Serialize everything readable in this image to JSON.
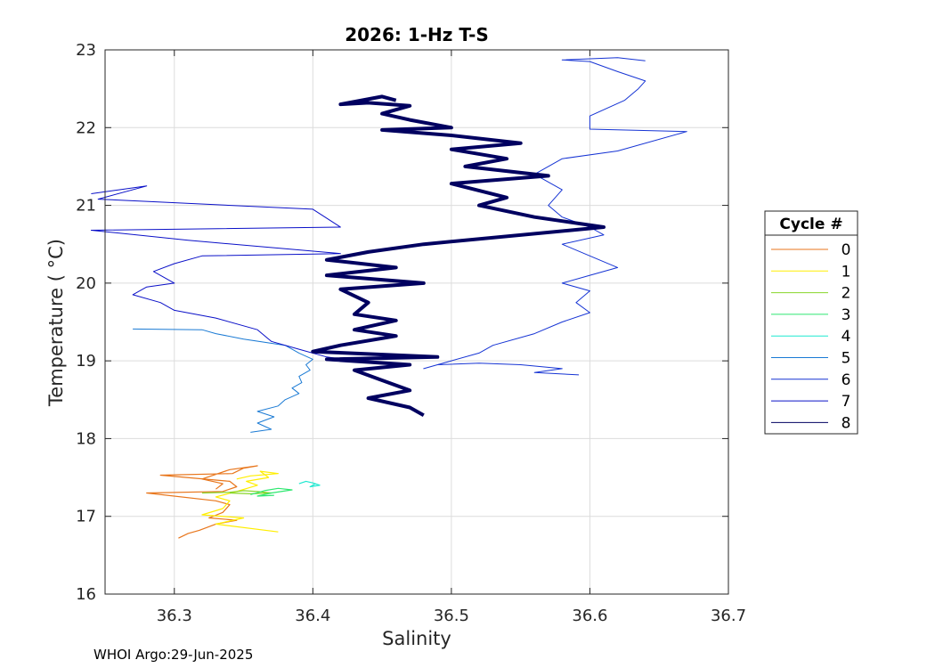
{
  "chart_data": {
    "type": "line",
    "title": "2026: 1-Hz T-S",
    "xlabel": "Salinity",
    "ylabel": "Temperature ( °C)",
    "xlim": [
      36.25,
      36.7
    ],
    "ylim": [
      16,
      23
    ],
    "xticks": [
      "36.3",
      "36.4",
      "36.5",
      "36.6",
      "36.7"
    ],
    "yticks": [
      "16",
      "17",
      "18",
      "19",
      "20",
      "21",
      "22",
      "23"
    ],
    "grid": true,
    "legend": {
      "title": "Cycle #",
      "placement": "outside-right"
    },
    "series": [
      {
        "name": "0",
        "color": "#e8761c",
        "width": 1.2,
        "points": [
          [
            36.303,
            16.72
          ],
          [
            36.31,
            16.78
          ],
          [
            36.318,
            16.82
          ],
          [
            36.33,
            16.9
          ],
          [
            36.345,
            16.95
          ],
          [
            36.325,
            16.98
          ],
          [
            36.335,
            17.05
          ],
          [
            36.34,
            17.15
          ],
          [
            36.33,
            17.2
          ],
          [
            36.28,
            17.3
          ],
          [
            36.335,
            17.32
          ],
          [
            36.345,
            17.38
          ],
          [
            36.34,
            17.45
          ],
          [
            36.29,
            17.53
          ],
          [
            36.342,
            17.55
          ],
          [
            36.35,
            17.62
          ],
          [
            36.36,
            17.65
          ],
          [
            36.34,
            17.6
          ],
          [
            36.32,
            17.48
          ],
          [
            36.335,
            17.42
          ],
          [
            36.33,
            17.35
          ]
        ]
      },
      {
        "name": "1",
        "color": "#ffee00",
        "width": 1.2,
        "points": [
          [
            36.375,
            16.8
          ],
          [
            36.33,
            16.9
          ],
          [
            36.35,
            16.98
          ],
          [
            36.32,
            17.02
          ],
          [
            36.335,
            17.1
          ],
          [
            36.34,
            17.2
          ],
          [
            36.33,
            17.25
          ],
          [
            36.345,
            17.32
          ],
          [
            36.36,
            17.4
          ],
          [
            36.352,
            17.45
          ],
          [
            36.368,
            17.5
          ],
          [
            36.362,
            17.58
          ],
          [
            36.375,
            17.55
          ],
          [
            36.355,
            17.52
          ],
          [
            36.345,
            17.48
          ]
        ]
      },
      {
        "name": "2",
        "color": "#88d62a",
        "width": 1.2,
        "points": [
          [
            36.32,
            17.3
          ],
          [
            36.34,
            17.31
          ],
          [
            36.35,
            17.33
          ],
          [
            36.36,
            17.32
          ],
          [
            36.37,
            17.3
          ],
          [
            36.355,
            17.29
          ],
          [
            36.34,
            17.3
          ]
        ]
      },
      {
        "name": "3",
        "color": "#2ee870",
        "width": 1.2,
        "points": [
          [
            36.355,
            17.28
          ],
          [
            36.365,
            17.33
          ],
          [
            36.375,
            17.36
          ],
          [
            36.385,
            17.34
          ],
          [
            36.37,
            17.3
          ],
          [
            36.36,
            17.26
          ],
          [
            36.372,
            17.27
          ]
        ]
      },
      {
        "name": "4",
        "color": "#1de8d0",
        "width": 1.2,
        "points": [
          [
            36.39,
            17.42
          ],
          [
            36.395,
            17.45
          ],
          [
            36.4,
            17.43
          ],
          [
            36.405,
            17.4
          ],
          [
            36.398,
            17.38
          ],
          [
            36.402,
            17.42
          ]
        ]
      },
      {
        "name": "5",
        "color": "#1a7ad4",
        "width": 1.0,
        "points": [
          [
            36.355,
            18.08
          ],
          [
            36.37,
            18.12
          ],
          [
            36.36,
            18.2
          ],
          [
            36.372,
            18.28
          ],
          [
            36.36,
            18.35
          ],
          [
            36.375,
            18.42
          ],
          [
            36.38,
            18.5
          ],
          [
            36.39,
            18.58
          ],
          [
            36.385,
            18.65
          ],
          [
            36.392,
            18.72
          ],
          [
            36.39,
            18.8
          ],
          [
            36.398,
            18.88
          ],
          [
            36.395,
            18.95
          ],
          [
            36.4,
            19.02
          ],
          [
            36.39,
            19.1
          ],
          [
            36.38,
            19.2
          ],
          [
            36.35,
            19.28
          ],
          [
            36.33,
            19.35
          ],
          [
            36.32,
            19.4
          ],
          [
            36.27,
            19.41
          ]
        ]
      },
      {
        "name": "6",
        "color": "#1634d4",
        "width": 1.0,
        "points": [
          [
            36.592,
            18.82
          ],
          [
            36.56,
            18.85
          ],
          [
            36.58,
            18.9
          ],
          [
            36.55,
            18.95
          ],
          [
            36.52,
            18.97
          ],
          [
            36.49,
            18.95
          ],
          [
            36.48,
            18.9
          ],
          [
            36.5,
            19.0
          ],
          [
            36.52,
            19.1
          ],
          [
            36.53,
            19.2
          ],
          [
            36.56,
            19.35
          ],
          [
            36.58,
            19.5
          ],
          [
            36.6,
            19.62
          ],
          [
            36.59,
            19.75
          ],
          [
            36.6,
            19.9
          ],
          [
            36.58,
            20.0
          ],
          [
            36.6,
            20.1
          ],
          [
            36.62,
            20.2
          ],
          [
            36.6,
            20.35
          ],
          [
            36.58,
            20.5
          ],
          [
            36.61,
            20.62
          ],
          [
            36.6,
            20.72
          ],
          [
            36.58,
            20.85
          ],
          [
            36.57,
            21.0
          ],
          [
            36.58,
            21.2
          ],
          [
            36.56,
            21.4
          ],
          [
            36.58,
            21.6
          ],
          [
            36.62,
            21.7
          ],
          [
            36.67,
            21.95
          ],
          [
            36.6,
            21.98
          ],
          [
            36.6,
            22.15
          ],
          [
            36.625,
            22.35
          ],
          [
            36.635,
            22.5
          ],
          [
            36.64,
            22.6
          ],
          [
            36.62,
            22.72
          ],
          [
            36.6,
            22.85
          ],
          [
            36.58,
            22.87
          ],
          [
            36.62,
            22.9
          ],
          [
            36.64,
            22.86
          ]
        ]
      },
      {
        "name": "7",
        "color": "#0a10c8",
        "width": 1.0,
        "points": [
          [
            36.43,
            19.0
          ],
          [
            36.41,
            19.05
          ],
          [
            36.39,
            19.15
          ],
          [
            36.37,
            19.25
          ],
          [
            36.36,
            19.4
          ],
          [
            36.33,
            19.55
          ],
          [
            36.3,
            19.65
          ],
          [
            36.29,
            19.75
          ],
          [
            36.27,
            19.85
          ],
          [
            36.28,
            19.95
          ],
          [
            36.3,
            20.0
          ],
          [
            36.285,
            20.15
          ],
          [
            36.3,
            20.25
          ],
          [
            36.32,
            20.35
          ],
          [
            36.42,
            20.38
          ],
          [
            36.31,
            20.55
          ],
          [
            36.24,
            20.68
          ],
          [
            36.42,
            20.72
          ],
          [
            36.4,
            20.95
          ],
          [
            36.245,
            21.08
          ],
          [
            36.28,
            21.25
          ],
          [
            36.26,
            21.2
          ],
          [
            36.24,
            21.15
          ]
        ]
      },
      {
        "name": "8",
        "color": "#000060",
        "width": 4.0,
        "points": [
          [
            36.48,
            18.3
          ],
          [
            36.47,
            18.4
          ],
          [
            36.44,
            18.52
          ],
          [
            36.47,
            18.62
          ],
          [
            36.45,
            18.75
          ],
          [
            36.43,
            18.88
          ],
          [
            36.47,
            18.95
          ],
          [
            36.41,
            19.02
          ],
          [
            36.49,
            19.05
          ],
          [
            36.4,
            19.12
          ],
          [
            36.42,
            19.2
          ],
          [
            36.46,
            19.32
          ],
          [
            36.43,
            19.4
          ],
          [
            36.46,
            19.52
          ],
          [
            36.43,
            19.6
          ],
          [
            36.44,
            19.75
          ],
          [
            36.42,
            19.92
          ],
          [
            36.48,
            20.0
          ],
          [
            36.41,
            20.1
          ],
          [
            36.46,
            20.2
          ],
          [
            36.41,
            20.3
          ],
          [
            36.44,
            20.4
          ],
          [
            36.48,
            20.5
          ],
          [
            36.61,
            20.72
          ],
          [
            36.56,
            20.85
          ],
          [
            36.52,
            21.0
          ],
          [
            36.54,
            21.1
          ],
          [
            36.5,
            21.28
          ],
          [
            36.57,
            21.38
          ],
          [
            36.51,
            21.5
          ],
          [
            36.54,
            21.6
          ],
          [
            36.5,
            21.72
          ],
          [
            36.55,
            21.8
          ],
          [
            36.5,
            21.9
          ],
          [
            36.45,
            21.97
          ],
          [
            36.5,
            22.0
          ],
          [
            36.47,
            22.1
          ],
          [
            36.45,
            22.18
          ],
          [
            36.47,
            22.28
          ],
          [
            36.44,
            22.32
          ],
          [
            36.42,
            22.3
          ],
          [
            36.45,
            22.4
          ],
          [
            36.46,
            22.35
          ]
        ]
      }
    ]
  },
  "footer_text": "WHOI Argo:29-Jun-2025"
}
